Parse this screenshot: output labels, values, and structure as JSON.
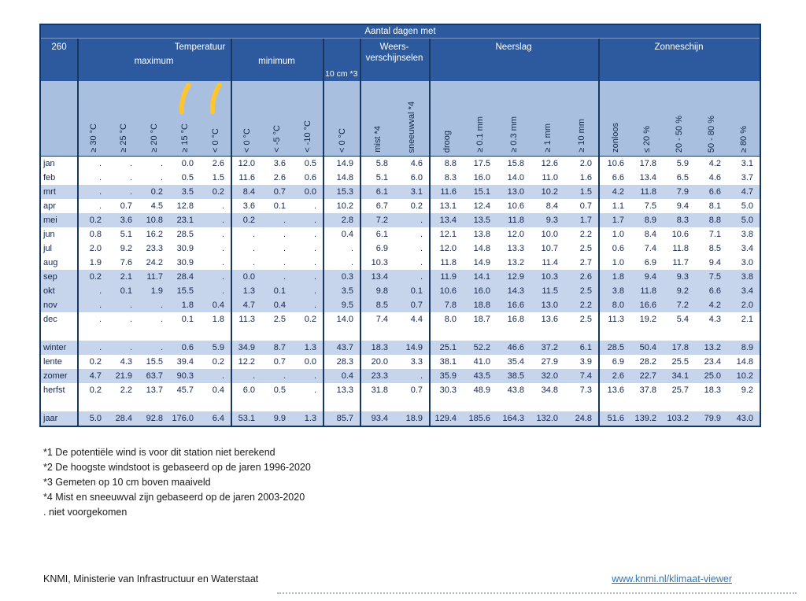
{
  "table": {
    "title": "Aantal dagen met",
    "station": "260",
    "header": {
      "temperatuur": "Temperatuur",
      "maximum": "maximum",
      "minimum": "minimum",
      "ten_cm": "10 cm *3",
      "weer_line1": "Weers-",
      "weer_line2": "verschijnselen",
      "neerslag": "Neerslag",
      "zonneschijn": "Zonneschijn"
    },
    "columns": [
      "≥ 30 °C",
      "≥ 25 °C",
      "≥ 20 °C",
      "≥ 15 °C",
      "< 0 °C",
      "< 0 °C",
      "< -5 °C",
      "< -10 °C",
      "< 0 °C",
      "mist *4",
      "sneeuwval *4",
      "droog",
      "≥ 0.1 mm",
      "≥ 0.3 mm",
      "≥ 1 mm",
      "≥ 10 mm",
      "zonloos",
      "≤ 20 %",
      "20 - 50 %",
      "50 - 80 %",
      "≥ 80 %"
    ],
    "rows": [
      {
        "label": "jan",
        "shaded": false,
        "values": [
          ".",
          ".",
          ".",
          "0.0",
          "2.6",
          "12.0",
          "3.6",
          "0.5",
          "14.9",
          "5.8",
          "4.6",
          "8.8",
          "17.5",
          "15.8",
          "12.6",
          "2.0",
          "10.6",
          "17.8",
          "5.9",
          "4.2",
          "3.1"
        ]
      },
      {
        "label": "feb",
        "shaded": false,
        "values": [
          ".",
          ".",
          ".",
          "0.5",
          "1.5",
          "11.6",
          "2.6",
          "0.6",
          "14.8",
          "5.1",
          "6.0",
          "8.3",
          "16.0",
          "14.0",
          "11.0",
          "1.6",
          "6.6",
          "13.4",
          "6.5",
          "4.6",
          "3.7"
        ]
      },
      {
        "label": "mrt",
        "shaded": true,
        "values": [
          ".",
          ".",
          "0.2",
          "3.5",
          "0.2",
          "8.4",
          "0.7",
          "0.0",
          "15.3",
          "6.1",
          "3.1",
          "11.6",
          "15.1",
          "13.0",
          "10.2",
          "1.5",
          "4.2",
          "11.8",
          "7.9",
          "6.6",
          "4.7"
        ]
      },
      {
        "label": "apr",
        "shaded": false,
        "values": [
          ".",
          "0.7",
          "4.5",
          "12.8",
          ".",
          "3.6",
          "0.1",
          ".",
          "10.2",
          "6.7",
          "0.2",
          "13.1",
          "12.4",
          "10.6",
          "8.4",
          "0.7",
          "1.1",
          "7.5",
          "9.4",
          "8.1",
          "5.0"
        ]
      },
      {
        "label": "mei",
        "shaded": true,
        "values": [
          "0.2",
          "3.6",
          "10.8",
          "23.1",
          ".",
          "0.2",
          ".",
          ".",
          "2.8",
          "7.2",
          ".",
          "13.4",
          "13.5",
          "11.8",
          "9.3",
          "1.7",
          "1.7",
          "8.9",
          "8.3",
          "8.8",
          "5.0"
        ]
      },
      {
        "label": "jun",
        "shaded": false,
        "values": [
          "0.8",
          "5.1",
          "16.2",
          "28.5",
          ".",
          ".",
          ".",
          ".",
          "0.4",
          "6.1",
          ".",
          "12.1",
          "13.8",
          "12.0",
          "10.0",
          "2.2",
          "1.0",
          "8.4",
          "10.6",
          "7.1",
          "3.8"
        ]
      },
      {
        "label": "jul",
        "shaded": false,
        "values": [
          "2.0",
          "9.2",
          "23.3",
          "30.9",
          ".",
          ".",
          ".",
          ".",
          ".",
          "6.9",
          ".",
          "12.0",
          "14.8",
          "13.3",
          "10.7",
          "2.5",
          "0.6",
          "7.4",
          "11.8",
          "8.5",
          "3.4"
        ]
      },
      {
        "label": "aug",
        "shaded": false,
        "values": [
          "1.9",
          "7.6",
          "24.2",
          "30.9",
          ".",
          ".",
          ".",
          ".",
          ".",
          "10.3",
          ".",
          "11.8",
          "14.9",
          "13.2",
          "11.4",
          "2.7",
          "1.0",
          "6.9",
          "11.7",
          "9.4",
          "3.0"
        ]
      },
      {
        "label": "sep",
        "shaded": true,
        "values": [
          "0.2",
          "2.1",
          "11.7",
          "28.4",
          ".",
          "0.0",
          ".",
          ".",
          "0.3",
          "13.4",
          ".",
          "11.9",
          "14.1",
          "12.9",
          "10.3",
          "2.6",
          "1.8",
          "9.4",
          "9.3",
          "7.5",
          "3.8"
        ]
      },
      {
        "label": "okt",
        "shaded": true,
        "values": [
          ".",
          "0.1",
          "1.9",
          "15.5",
          ".",
          "1.3",
          "0.1",
          ".",
          "3.5",
          "9.8",
          "0.1",
          "10.6",
          "16.0",
          "14.3",
          "11.5",
          "2.5",
          "3.8",
          "11.8",
          "9.2",
          "6.6",
          "3.4"
        ]
      },
      {
        "label": "nov",
        "shaded": true,
        "values": [
          ".",
          ".",
          ".",
          "1.8",
          "0.4",
          "4.7",
          "0.4",
          ".",
          "9.5",
          "8.5",
          "0.7",
          "7.8",
          "18.8",
          "16.6",
          "13.0",
          "2.2",
          "8.0",
          "16.6",
          "7.2",
          "4.2",
          "2.0"
        ]
      },
      {
        "label": "dec",
        "shaded": false,
        "values": [
          ".",
          ".",
          ".",
          "0.1",
          "1.8",
          "11.3",
          "2.5",
          "0.2",
          "14.0",
          "7.4",
          "4.4",
          "8.0",
          "18.7",
          "16.8",
          "13.6",
          "2.5",
          "11.3",
          "19.2",
          "5.4",
          "4.3",
          "2.1"
        ]
      },
      {
        "label": "",
        "shaded": false,
        "gap": true,
        "values": []
      },
      {
        "label": "winter",
        "shaded": true,
        "values": [
          ".",
          ".",
          ".",
          "0.6",
          "5.9",
          "34.9",
          "8.7",
          "1.3",
          "43.7",
          "18.3",
          "14.9",
          "25.1",
          "52.2",
          "46.6",
          "37.2",
          "6.1",
          "28.5",
          "50.4",
          "17.8",
          "13.2",
          "8.9"
        ]
      },
      {
        "label": "lente",
        "shaded": false,
        "values": [
          "0.2",
          "4.3",
          "15.5",
          "39.4",
          "0.2",
          "12.2",
          "0.7",
          "0.0",
          "28.3",
          "20.0",
          "3.3",
          "38.1",
          "41.0",
          "35.4",
          "27.9",
          "3.9",
          "6.9",
          "28.2",
          "25.5",
          "23.4",
          "14.8"
        ]
      },
      {
        "label": "zomer",
        "shaded": true,
        "values": [
          "4.7",
          "21.9",
          "63.7",
          "90.3",
          ".",
          ".",
          ".",
          ".",
          "0.4",
          "23.3",
          ".",
          "35.9",
          "43.5",
          "38.5",
          "32.0",
          "7.4",
          "2.6",
          "22.7",
          "34.1",
          "25.0",
          "10.2"
        ]
      },
      {
        "label": "herfst",
        "shaded": false,
        "values": [
          "0.2",
          "2.2",
          "13.7",
          "45.7",
          "0.4",
          "6.0",
          "0.5",
          ".",
          "13.3",
          "31.8",
          "0.7",
          "30.3",
          "48.9",
          "43.8",
          "34.8",
          "7.3",
          "13.6",
          "37.8",
          "25.7",
          "18.3",
          "9.2"
        ]
      },
      {
        "label": "",
        "shaded": false,
        "gap": true,
        "values": []
      },
      {
        "label": "jaar",
        "shaded": true,
        "values": [
          "5.0",
          "28.4",
          "92.8",
          "176.0",
          "6.4",
          "53.1",
          "9.9",
          "1.3",
          "85.7",
          "93.4",
          "18.9",
          "129.4",
          "185.6",
          "164.3",
          "132.0",
          "24.8",
          "51.6",
          "139.2",
          "103.2",
          "79.9",
          "43.0"
        ]
      }
    ]
  },
  "footnotes": [
    "*1 De potentiële wind is voor dit station niet berekend",
    "*2 De hoogste windstoot is gebaseerd op de jaren 1996-2020",
    "*3 Gemeten op 10 cm boven maaiveld",
    "*4 Mist en sneeuwval zijn gebaseerd op de jaren 2003-2020",
    ". niet voorgekomen"
  ],
  "footer": {
    "left": "KNMI, Ministerie van Infrastructuur en Waterstaat",
    "link": "www.knmi.nl/klimaat-viewer"
  },
  "colors": {
    "header_blue": "#2d5a9e",
    "column_header_blue": "#a9bfdf",
    "row_stripe_blue": "#c6d4ec",
    "border_navy": "#17375e",
    "link_blue": "#2e75b6",
    "highlight_yellow": "#ffc52e"
  }
}
